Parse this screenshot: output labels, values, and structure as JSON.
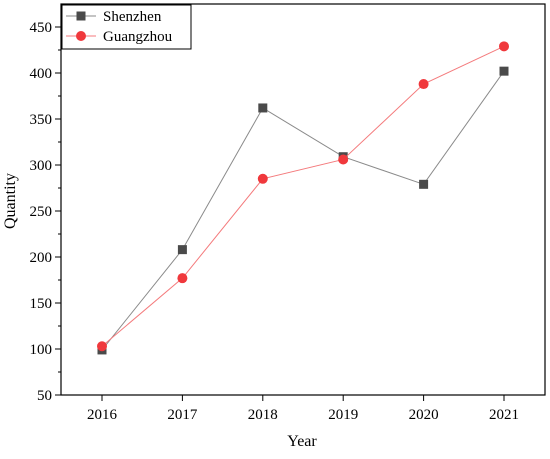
{
  "chart_data": {
    "type": "line",
    "title": "",
    "xlabel": "Year",
    "ylabel": "Quantity",
    "categories": [
      "2016",
      "2017",
      "2018",
      "2019",
      "2020",
      "2021"
    ],
    "ylim": [
      50,
      475
    ],
    "yticks": [
      "50",
      "100",
      "150",
      "200",
      "250",
      "300",
      "350",
      "400",
      "450"
    ],
    "grid": false,
    "legend_position": "top-left",
    "series": [
      {
        "name": "Shenzhen",
        "values": [
          99,
          208,
          362,
          309,
          279,
          402
        ],
        "color": "#4a4a4a",
        "line_color": "#8a8a8a",
        "marker": "square"
      },
      {
        "name": "Guangzhou",
        "values": [
          103,
          177,
          285,
          306,
          388,
          429
        ],
        "color": "#f0383c",
        "line_color": "#f47a7c",
        "marker": "circle"
      }
    ]
  }
}
